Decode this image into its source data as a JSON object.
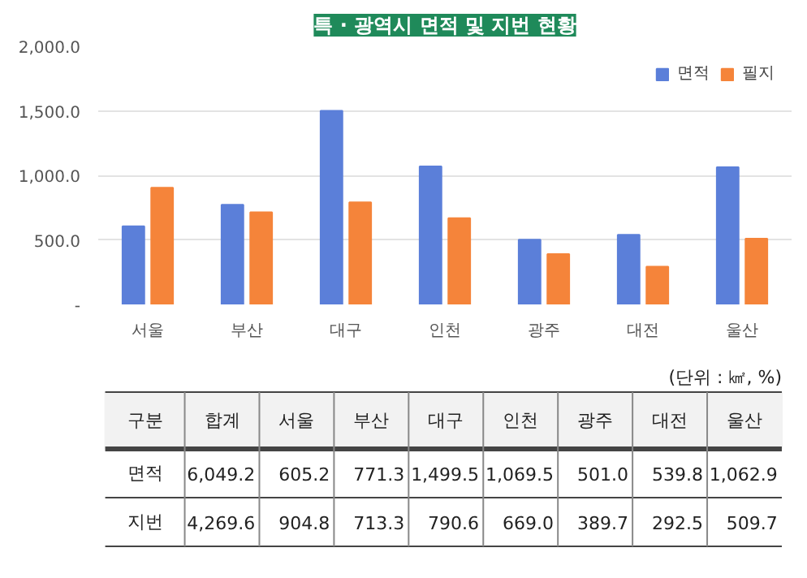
{
  "chart_data": [
    {
      "type": "bar",
      "title": "특 · 광역시 면적 및 지번 현황",
      "categories": [
        "서울",
        "부산",
        "대구",
        "인천",
        "광주",
        "대전",
        "울산"
      ],
      "series": [
        {
          "name": "면적",
          "color": "#5b7fd9",
          "values": [
            605.2,
            771.3,
            1499.5,
            1069.5,
            501.0,
            539.8,
            1062.9
          ]
        },
        {
          "name": "필지",
          "color": "#f5843a",
          "values": [
            904.8,
            713.3,
            790.6,
            669.0,
            389.7,
            292.5,
            509.7
          ]
        }
      ],
      "ylim": [
        0,
        2000
      ],
      "yticks": [
        {
          "value": 0,
          "label": "-"
        },
        {
          "value": 500,
          "label": "500.0"
        },
        {
          "value": 1000,
          "label": "1,000.0"
        },
        {
          "value": 1500,
          "label": "1,500.0"
        },
        {
          "value": 2000,
          "label": "2,000.0"
        }
      ],
      "grid": "y",
      "legend": "top right"
    },
    {
      "type": "other",
      "categories": [
        "구분",
        "합계",
        "서울",
        "부산",
        "대구",
        "인천",
        "광주",
        "대전",
        "울산"
      ],
      "annotations": [
        "(단위 : ㎢, %)",
        "면적",
        "6,049.2",
        "605.2",
        "771.3",
        "1,499.5",
        "1,069.5",
        "501.0",
        "539.8",
        "1,062.9",
        "지번",
        "4,269.6",
        "904.8",
        "713.3",
        "790.6",
        "669.0",
        "389.7",
        "292.5",
        "509.7"
      ]
    }
  ]
}
